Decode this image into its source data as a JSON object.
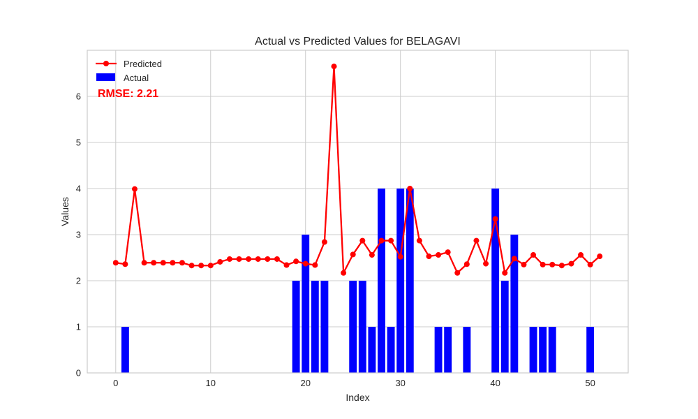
{
  "chart_data": {
    "type": "bar+line",
    "title": "Actual vs Predicted Values for BELAGAVI",
    "xlabel": "Index",
    "ylabel": "Values",
    "xlim": [
      -3,
      54
    ],
    "ylim": [
      0,
      7
    ],
    "xticks": [
      0,
      10,
      20,
      30,
      40,
      50
    ],
    "yticks": [
      0,
      1,
      2,
      3,
      4,
      5,
      6
    ],
    "grid": true,
    "legend": "top-left",
    "annotation": {
      "text": "RMSE: 2.21",
      "color": "#ff0000"
    },
    "series": [
      {
        "name": "Predicted",
        "kind": "line",
        "color": "#ff0000",
        "x": [
          0,
          1,
          2,
          3,
          4,
          5,
          6,
          7,
          8,
          9,
          10,
          11,
          12,
          13,
          14,
          15,
          16,
          17,
          18,
          19,
          20,
          21,
          22,
          23,
          24,
          25,
          26,
          27,
          28,
          29,
          30,
          31,
          32,
          33,
          34,
          35,
          36,
          37,
          38,
          39,
          40,
          41,
          42,
          43,
          44,
          45,
          46,
          47,
          48,
          49,
          50,
          51
        ],
        "values": [
          2.39,
          2.36,
          3.99,
          2.39,
          2.39,
          2.39,
          2.39,
          2.39,
          2.33,
          2.33,
          2.33,
          2.41,
          2.47,
          2.47,
          2.47,
          2.47,
          2.47,
          2.47,
          2.34,
          2.42,
          2.37,
          2.34,
          2.84,
          6.65,
          2.17,
          2.57,
          2.87,
          2.56,
          2.87,
          2.87,
          2.52,
          4.0,
          2.87,
          2.53,
          2.56,
          2.62,
          2.17,
          2.36,
          2.87,
          2.37,
          3.34,
          2.17,
          2.48,
          2.35,
          2.56,
          2.35,
          2.35,
          2.33,
          2.37,
          2.56,
          2.35,
          2.53
        ]
      },
      {
        "name": "Actual",
        "kind": "bar",
        "color": "#0000ff",
        "x": [
          0,
          1,
          2,
          3,
          4,
          5,
          6,
          7,
          8,
          9,
          10,
          11,
          12,
          13,
          14,
          15,
          16,
          17,
          18,
          19,
          20,
          21,
          22,
          23,
          24,
          25,
          26,
          27,
          28,
          29,
          30,
          31,
          32,
          33,
          34,
          35,
          36,
          37,
          38,
          39,
          40,
          41,
          42,
          43,
          44,
          45,
          46,
          47,
          48,
          49,
          50,
          51
        ],
        "values": [
          0,
          1,
          0,
          0,
          0,
          0,
          0,
          0,
          0,
          0,
          0,
          0,
          0,
          0,
          0,
          0,
          0,
          0,
          0,
          2,
          3,
          2,
          2,
          0,
          0,
          2,
          2,
          1,
          4,
          1,
          4,
          4,
          0,
          0,
          1,
          1,
          0,
          1,
          0,
          0,
          4,
          2,
          3,
          0,
          1,
          1,
          1,
          0,
          0,
          0,
          1,
          0
        ]
      }
    ]
  }
}
